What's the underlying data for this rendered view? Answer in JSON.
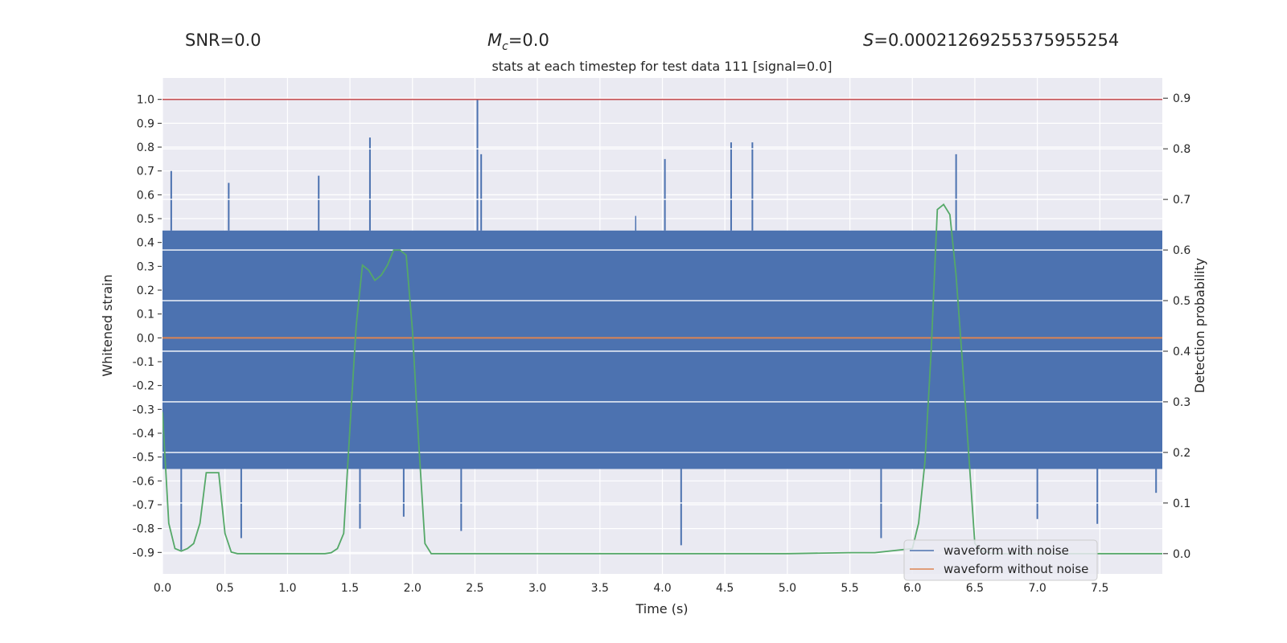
{
  "header": {
    "snr": "SNR=0.0",
    "mc_symbol": "M",
    "mc_sub": "c",
    "mc_value": "=0.0",
    "s_symbol": "S",
    "s_value": "=0.00021269255375955254"
  },
  "chart_data": {
    "type": "line",
    "title": "stats at each timestep for test data 111 [signal=0.0]",
    "xlabel": "Time (s)",
    "ylabel": "Whitened strain",
    "y2label": "Detection probability",
    "xlim": [
      0.0,
      8.0
    ],
    "ylim": [
      -0.99,
      1.09
    ],
    "y2lim": [
      -0.04,
      0.94
    ],
    "xticks": [
      "0.0",
      "0.5",
      "1.0",
      "1.5",
      "2.0",
      "2.5",
      "3.0",
      "3.5",
      "4.0",
      "4.5",
      "5.0",
      "5.5",
      "6.0",
      "6.5",
      "7.0",
      "7.5"
    ],
    "yticks": [
      "1.0",
      "0.9",
      "0.8",
      "0.7",
      "0.6",
      "0.5",
      "0.4",
      "0.3",
      "0.2",
      "0.1",
      "0.0",
      "-0.1",
      "-0.2",
      "-0.3",
      "-0.4",
      "-0.5",
      "-0.6",
      "-0.7",
      "-0.8",
      "-0.9"
    ],
    "y2ticks": [
      "0.9",
      "0.8",
      "0.7",
      "0.6",
      "0.5",
      "0.4",
      "0.3",
      "0.2",
      "0.1",
      "0.0"
    ],
    "threshold_value": 1.0,
    "noise_band": {
      "upper": 0.45,
      "lower": -0.55
    },
    "spikes": [
      {
        "t": 0.07,
        "v": 0.7
      },
      {
        "t": 0.15,
        "v": -0.89
      },
      {
        "t": 0.53,
        "v": 0.65
      },
      {
        "t": 0.63,
        "v": -0.84
      },
      {
        "t": 1.25,
        "v": 0.68
      },
      {
        "t": 1.58,
        "v": -0.8
      },
      {
        "t": 1.66,
        "v": 0.84
      },
      {
        "t": 1.93,
        "v": -0.75
      },
      {
        "t": 2.39,
        "v": -0.81
      },
      {
        "t": 2.52,
        "v": 1.0
      },
      {
        "t": 2.55,
        "v": 0.77
      },
      {
        "t": 4.02,
        "v": 0.75
      },
      {
        "t": 4.15,
        "v": -0.87
      },
      {
        "t": 4.55,
        "v": 0.82
      },
      {
        "t": 4.72,
        "v": 0.82
      },
      {
        "t": 5.75,
        "v": -0.84
      },
      {
        "t": 6.35,
        "v": 0.77
      },
      {
        "t": 7.0,
        "v": -0.76
      },
      {
        "t": 7.48,
        "v": -0.78
      },
      {
        "t": 7.95,
        "v": -0.65
      }
    ],
    "series": [
      {
        "name": "waveform with noise",
        "color": "#4c72b0",
        "axis": "left"
      },
      {
        "name": "waveform without noise",
        "color": "#dd8452",
        "axis": "left",
        "x": [
          0.0,
          8.0
        ],
        "y": [
          0.0,
          0.0
        ]
      },
      {
        "name": "detection probability",
        "color": "#55a868",
        "axis": "right",
        "x": [
          0.0,
          0.05,
          0.1,
          0.15,
          0.2,
          0.25,
          0.3,
          0.35,
          0.4,
          0.45,
          0.5,
          0.55,
          0.6,
          0.65,
          0.7,
          0.8,
          1.0,
          1.2,
          1.3,
          1.35,
          1.4,
          1.45,
          1.5,
          1.55,
          1.6,
          1.65,
          1.7,
          1.75,
          1.8,
          1.85,
          1.9,
          1.95,
          2.0,
          2.05,
          2.1,
          2.15,
          2.2,
          2.25,
          2.3,
          2.35,
          2.5,
          3.0,
          4.0,
          5.0,
          5.5,
          5.7,
          6.0,
          6.05,
          6.1,
          6.15,
          6.2,
          6.25,
          6.3,
          6.35,
          6.4,
          6.45,
          6.5,
          6.55,
          6.6,
          6.65,
          6.7,
          7.0,
          8.0
        ],
        "y": [
          0.28,
          0.06,
          0.01,
          0.005,
          0.01,
          0.02,
          0.06,
          0.16,
          0.16,
          0.16,
          0.04,
          0.003,
          0.0,
          0.0,
          0.0,
          0.0,
          0.0,
          0.0,
          0.0,
          0.002,
          0.01,
          0.04,
          0.25,
          0.45,
          0.57,
          0.56,
          0.54,
          0.55,
          0.57,
          0.6,
          0.6,
          0.59,
          0.44,
          0.22,
          0.02,
          0.0,
          0.0,
          0.0,
          0.0,
          0.0,
          0.0,
          0.0,
          0.0,
          0.0,
          0.002,
          0.002,
          0.01,
          0.06,
          0.18,
          0.4,
          0.68,
          0.69,
          0.67,
          0.55,
          0.38,
          0.2,
          0.02,
          0.005,
          0.003,
          0.0,
          0.0,
          0.0,
          0.0
        ]
      }
    ],
    "legend": {
      "position": "lower-right",
      "entries": [
        "waveform with noise",
        "waveform without noise"
      ]
    }
  }
}
